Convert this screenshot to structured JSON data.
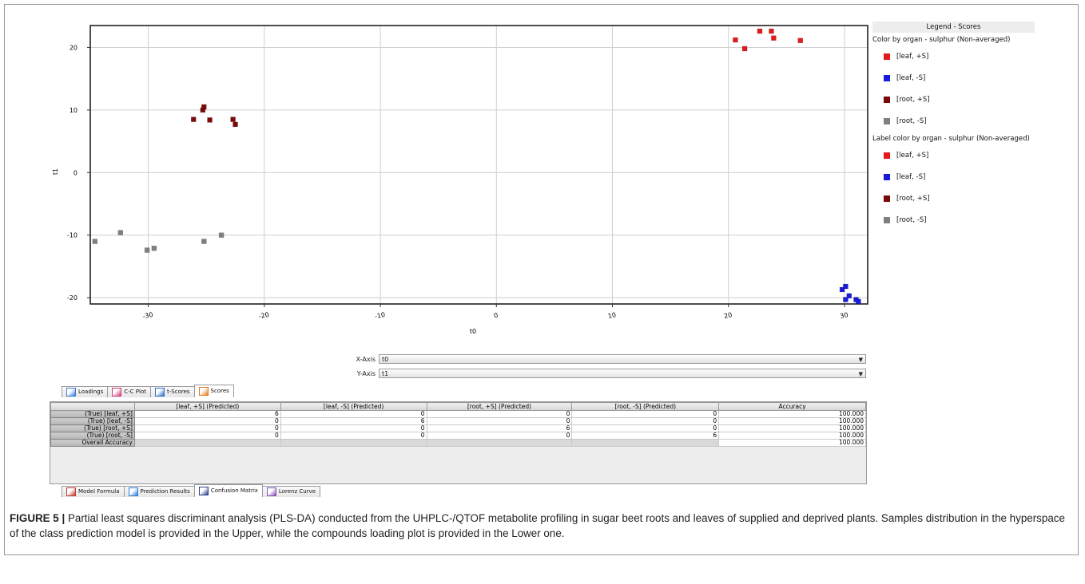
{
  "chart_data": {
    "type": "scatter",
    "xlabel": "t0",
    "ylabel": "t1",
    "xlim": [
      -35,
      32
    ],
    "ylim": [
      -21,
      23.5
    ],
    "x_ticks": [
      -30,
      -20,
      -10,
      0,
      10,
      20,
      30
    ],
    "y_ticks": [
      -20,
      -10,
      0,
      10,
      20
    ],
    "x_tick_labels": [
      "-30",
      "-20",
      "-10",
      "0",
      "10",
      "20",
      "30"
    ],
    "y_tick_labels": [
      "-20",
      "-10",
      "0",
      "10",
      "20"
    ],
    "grid": true,
    "legend_position": "right",
    "series": [
      {
        "name": "[leaf, +S]",
        "color": "#e31a1c",
        "points": [
          [
            20.6,
            21.2
          ],
          [
            21.4,
            19.8
          ],
          [
            22.7,
            22.6
          ],
          [
            23.7,
            22.6
          ],
          [
            23.9,
            21.5
          ],
          [
            26.2,
            21.1
          ]
        ]
      },
      {
        "name": "[leaf, -S]",
        "color": "#1a1adb",
        "points": [
          [
            29.8,
            -18.7
          ],
          [
            30.1,
            -18.2
          ],
          [
            30.1,
            -20.3
          ],
          [
            30.4,
            -19.7
          ],
          [
            31.0,
            -20.3
          ],
          [
            31.2,
            -20.6
          ]
        ]
      },
      {
        "name": "[root, +S]",
        "color": "#7a0a0a",
        "points": [
          [
            -26.1,
            8.5
          ],
          [
            -25.3,
            10.0
          ],
          [
            -25.2,
            10.5
          ],
          [
            -24.7,
            8.4
          ],
          [
            -22.7,
            8.5
          ],
          [
            -22.5,
            7.7
          ]
        ]
      },
      {
        "name": "[root, -S]",
        "color": "#7f7f7f",
        "points": [
          [
            -34.6,
            -11.0
          ],
          [
            -32.4,
            -9.6
          ],
          [
            -30.1,
            -12.4
          ],
          [
            -29.5,
            -12.1
          ],
          [
            -25.2,
            -11.0
          ],
          [
            -23.7,
            -10.0
          ]
        ]
      }
    ]
  },
  "legend": {
    "title": "Legend - Scores",
    "color_group_title": "Color by organ - sulphur (Non-averaged)",
    "label_group_title": "Label color by organ - sulphur (Non-averaged)",
    "items": [
      {
        "label": "[leaf, +S]",
        "color": "#e31a1c"
      },
      {
        "label": "[leaf, -S]",
        "color": "#1a1adb"
      },
      {
        "label": "[root, +S]",
        "color": "#7a0a0a"
      },
      {
        "label": "[root, -S]",
        "color": "#7f7f7f"
      }
    ]
  },
  "axis_controls": {
    "x_label": "X-Axis",
    "x_value": "t0",
    "y_label": "Y-Axis",
    "y_value": "t1"
  },
  "top_tabs": [
    {
      "label": "Loadings",
      "icon": "loadings-icon"
    },
    {
      "label": "C-C Plot",
      "icon": "cc-plot-icon"
    },
    {
      "label": "t-Scores",
      "icon": "t-scores-icon"
    },
    {
      "label": "Scores",
      "icon": "scores-icon",
      "active": true
    }
  ],
  "confusion_matrix": {
    "columns": [
      "[leaf, +S] (Predicted)",
      "[leaf, -S] (Predicted)",
      "[root, +S] (Predicted)",
      "[root, -S] (Predicted)",
      "Accuracy"
    ],
    "rows": [
      {
        "label": "(True) [leaf, +S]",
        "values": [
          "6",
          "0",
          "0",
          "0",
          "100.000"
        ]
      },
      {
        "label": "(True) [leaf, -S]",
        "values": [
          "0",
          "6",
          "0",
          "0",
          "100.000"
        ]
      },
      {
        "label": "(True) [root, +S]",
        "values": [
          "0",
          "0",
          "6",
          "0",
          "100.000"
        ]
      },
      {
        "label": "(True) [root, -S]",
        "values": [
          "0",
          "0",
          "0",
          "6",
          "100.000"
        ]
      }
    ],
    "overall_label": "Overall Accuracy",
    "overall_value": "100.000"
  },
  "bottom_tabs": [
    {
      "label": "Model Formula",
      "icon": "model-formula-icon"
    },
    {
      "label": "Prediction Results",
      "icon": "prediction-results-icon"
    },
    {
      "label": "Confusion Matrix",
      "icon": "confusion-matrix-icon",
      "active": true
    },
    {
      "label": "Lorenz Curve",
      "icon": "lorenz-curve-icon"
    }
  ],
  "caption": {
    "label": "FIGURE 5 |",
    "text": "Partial least squares discriminant analysis (PLS-DA) conducted from the UHPLC-/QTOF metabolite profiling in sugar beet roots and leaves of supplied and deprived plants. Samples distribution in the hyperspace of the class prediction model is provided in the Upper, while the compounds loading plot is provided in the Lower one."
  }
}
